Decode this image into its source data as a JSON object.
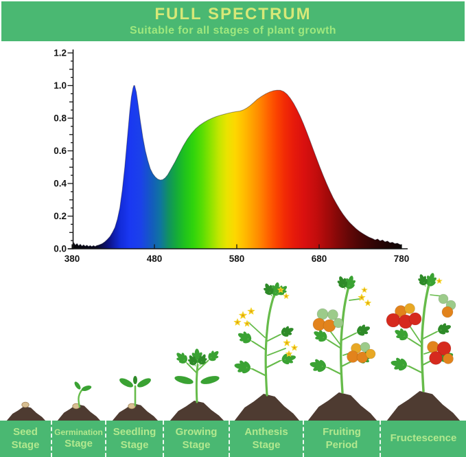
{
  "header": {
    "title": "FULL SPECTRUM",
    "subtitle": "Suitable for all stages of plant growth"
  },
  "chart_data": {
    "type": "area",
    "title": "",
    "xlabel": "",
    "ylabel": "",
    "xlim": [
      380,
      780
    ],
    "ylim": [
      0,
      1.2
    ],
    "grid": false,
    "legend": "none",
    "x_ticks": [
      380,
      480,
      580,
      680,
      780
    ],
    "y_ticks": [
      0,
      0.2,
      0.4,
      0.6,
      0.8,
      1.0,
      1.2
    ],
    "points": [
      [
        380,
        0.02
      ],
      [
        382,
        0.038
      ],
      [
        384,
        0.022
      ],
      [
        386,
        0.032
      ],
      [
        388,
        0.018
      ],
      [
        390,
        0.028
      ],
      [
        392,
        0.016
      ],
      [
        394,
        0.024
      ],
      [
        396,
        0.015
      ],
      [
        398,
        0.022
      ],
      [
        400,
        0.014
      ],
      [
        402,
        0.02
      ],
      [
        404,
        0.013
      ],
      [
        406,
        0.02
      ],
      [
        408,
        0.014
      ],
      [
        410,
        0.02
      ],
      [
        412,
        0.022
      ],
      [
        414,
        0.026
      ],
      [
        416,
        0.03
      ],
      [
        418,
        0.036
      ],
      [
        420,
        0.044
      ],
      [
        423,
        0.058
      ],
      [
        426,
        0.075
      ],
      [
        429,
        0.1
      ],
      [
        432,
        0.13
      ],
      [
        435,
        0.18
      ],
      [
        438,
        0.25
      ],
      [
        441,
        0.36
      ],
      [
        444,
        0.5
      ],
      [
        447,
        0.67
      ],
      [
        450,
        0.84
      ],
      [
        452,
        0.93
      ],
      [
        454,
        0.985
      ],
      [
        455,
        1.0
      ],
      [
        456,
        1.0
      ],
      [
        458,
        0.96
      ],
      [
        460,
        0.89
      ],
      [
        463,
        0.78
      ],
      [
        466,
        0.68
      ],
      [
        469,
        0.6
      ],
      [
        472,
        0.54
      ],
      [
        475,
        0.49
      ],
      [
        478,
        0.46
      ],
      [
        481,
        0.44
      ],
      [
        484,
        0.427
      ],
      [
        487,
        0.421
      ],
      [
        490,
        0.423
      ],
      [
        493,
        0.434
      ],
      [
        496,
        0.452
      ],
      [
        500,
        0.487
      ],
      [
        505,
        0.532
      ],
      [
        510,
        0.582
      ],
      [
        515,
        0.63
      ],
      [
        520,
        0.672
      ],
      [
        525,
        0.707
      ],
      [
        530,
        0.735
      ],
      [
        535,
        0.757
      ],
      [
        540,
        0.774
      ],
      [
        545,
        0.788
      ],
      [
        550,
        0.8
      ],
      [
        555,
        0.81
      ],
      [
        560,
        0.818
      ],
      [
        565,
        0.825
      ],
      [
        570,
        0.831
      ],
      [
        575,
        0.837
      ],
      [
        580,
        0.841
      ],
      [
        584,
        0.844
      ],
      [
        588,
        0.851
      ],
      [
        592,
        0.862
      ],
      [
        596,
        0.876
      ],
      [
        600,
        0.894
      ],
      [
        605,
        0.916
      ],
      [
        610,
        0.934
      ],
      [
        615,
        0.949
      ],
      [
        620,
        0.961
      ],
      [
        625,
        0.969
      ],
      [
        629,
        0.972
      ],
      [
        633,
        0.971
      ],
      [
        637,
        0.963
      ],
      [
        641,
        0.947
      ],
      [
        645,
        0.922
      ],
      [
        649,
        0.891
      ],
      [
        653,
        0.854
      ],
      [
        657,
        0.812
      ],
      [
        661,
        0.765
      ],
      [
        665,
        0.714
      ],
      [
        669,
        0.661
      ],
      [
        673,
        0.606
      ],
      [
        677,
        0.552
      ],
      [
        681,
        0.499
      ],
      [
        685,
        0.448
      ],
      [
        689,
        0.4
      ],
      [
        693,
        0.355
      ],
      [
        697,
        0.313
      ],
      [
        701,
        0.276
      ],
      [
        705,
        0.242
      ],
      [
        709,
        0.212
      ],
      [
        713,
        0.185
      ],
      [
        717,
        0.161
      ],
      [
        721,
        0.141
      ],
      [
        725,
        0.122
      ],
      [
        729,
        0.106
      ],
      [
        733,
        0.093
      ],
      [
        737,
        0.081
      ],
      [
        741,
        0.07
      ],
      [
        745,
        0.062
      ],
      [
        748,
        0.054
      ],
      [
        751,
        0.06
      ],
      [
        754,
        0.048
      ],
      [
        757,
        0.054
      ],
      [
        760,
        0.042
      ],
      [
        763,
        0.047
      ],
      [
        766,
        0.036
      ],
      [
        769,
        0.04
      ],
      [
        772,
        0.031
      ],
      [
        775,
        0.034
      ],
      [
        778,
        0.026
      ],
      [
        780,
        0.024
      ]
    ],
    "spectrum_gradient": [
      [
        380,
        "#060606"
      ],
      [
        410,
        "#0a0a22"
      ],
      [
        425,
        "#0d1388"
      ],
      [
        438,
        "#122bd8"
      ],
      [
        450,
        "#1a38f2"
      ],
      [
        463,
        "#1b41ea"
      ],
      [
        476,
        "#145ac0"
      ],
      [
        487,
        "#0f74a0"
      ],
      [
        497,
        "#119260"
      ],
      [
        507,
        "#15ac38"
      ],
      [
        517,
        "#20c31c"
      ],
      [
        527,
        "#30d40c"
      ],
      [
        538,
        "#58dd04"
      ],
      [
        548,
        "#8ce300"
      ],
      [
        558,
        "#c2e600"
      ],
      [
        568,
        "#eae300"
      ],
      [
        578,
        "#fdd700"
      ],
      [
        588,
        "#ffbf00"
      ],
      [
        598,
        "#ffa300"
      ],
      [
        608,
        "#ff8600"
      ],
      [
        618,
        "#ff6300"
      ],
      [
        628,
        "#fb4400"
      ],
      [
        638,
        "#f22b05"
      ],
      [
        650,
        "#e6190b"
      ],
      [
        662,
        "#d9100f"
      ],
      [
        676,
        "#c40d0d"
      ],
      [
        690,
        "#a30a0a"
      ],
      [
        704,
        "#800808"
      ],
      [
        718,
        "#600707"
      ],
      [
        732,
        "#460606"
      ],
      [
        748,
        "#2f0505"
      ],
      [
        764,
        "#1d0505"
      ],
      [
        780,
        "#0e0707"
      ]
    ]
  },
  "stages": [
    {
      "line1": "Seed",
      "line2": "Stage",
      "icon": "seed-icon"
    },
    {
      "line1": "Germination",
      "line2": "Stage",
      "icon": "germination-icon"
    },
    {
      "line1": "Seedling",
      "line2": "Stage",
      "icon": "seedling-icon"
    },
    {
      "line1": "Growing",
      "line2": "Stage",
      "icon": "growing-plant-icon"
    },
    {
      "line1": "Anthesis",
      "line2": "Stage",
      "icon": "flowering-plant-icon"
    },
    {
      "line1": "Fruiting",
      "line2": "Period",
      "icon": "fruiting-plant-icon"
    },
    {
      "line1": "Fructescence",
      "line2": "",
      "icon": "ripe-tomato-plant-icon"
    }
  ],
  "colors": {
    "banner_green": "#4ab872",
    "banner_title": "#d6e878",
    "banner_subtitle": "#9fe87e",
    "label_text": "#b2e88e",
    "divider": "#ffffff",
    "axis": "#151515",
    "soil": "#4e3b31",
    "seed": "#d8bf92",
    "stem": "#66bb4a",
    "leaf": "#3aa233",
    "leaf_dark": "#2e8a28",
    "flower": "#f4d224",
    "fruit_red": "#d62a1e",
    "fruit_orange": "#e2831c",
    "fruit_amber": "#e8a825",
    "fruit_green": "#9ccb8a"
  }
}
